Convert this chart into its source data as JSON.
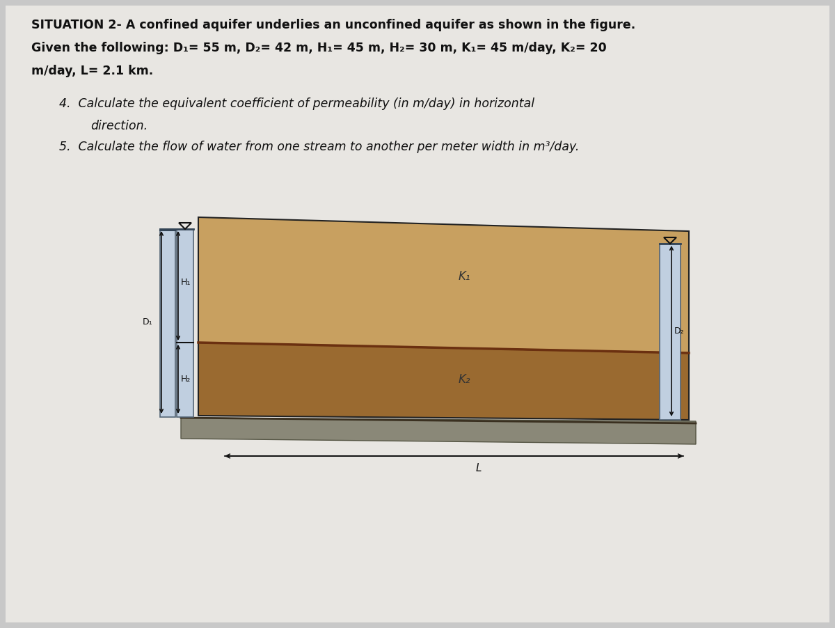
{
  "bg_color": "#c8c8c8",
  "paper_color": "#e6e4df",
  "title_line1": "SITUATION 2- A confined aquifer underlies an unconfined aquifer as shown in the figure.",
  "title_line2": "Given the following: D₁= 55 m, D₂= 42 m, H₁= 45 m, H₂= 30 m, K₁= 45 m/day, K₂= 20",
  "title_line3": "m/day, L= 2.1 km.",
  "upper_layer_color": "#c8a060",
  "lower_layer_color": "#9a6a30",
  "impermeable_color": "#888880",
  "well_color": "#c0cfe0",
  "divider_color": "#6b3010",
  "border_color": "#222222",
  "text_color": "#111111",
  "arrow_color": "#111111"
}
